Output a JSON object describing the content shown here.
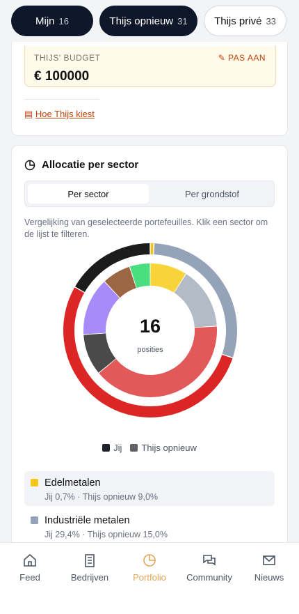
{
  "tabs": [
    {
      "label": "Mijn",
      "count": 16
    },
    {
      "label": "Thijs opnieuw",
      "count": 31
    },
    {
      "label": "Thijs privé",
      "count": 33
    }
  ],
  "budget": {
    "label": "THIJS' BUDGET",
    "edit": "PAS AAN",
    "amount": "€ 100000"
  },
  "how_link": "Hoe Thijs kiest",
  "allocation": {
    "title": "Allocatie per sector",
    "toggle": [
      "Per sector",
      "Per grondstof"
    ],
    "description": "Vergelijking van geselecteerde portefeuilles. Klik een sector om de lijst te filteren.",
    "chart_data": {
      "type": "donut",
      "center_value": 16,
      "center_label": "posities",
      "series": [
        {
          "name": "Jij",
          "color": "#1f2329",
          "values": [
            0.7,
            29.4,
            53.2,
            16.7
          ],
          "colors": [
            "#f5c518",
            "#94a3b8",
            "#dc2626",
            "#1c1c1c"
          ]
        },
        {
          "name": "Thijs opnieuw",
          "color": "#5f6166",
          "values": [
            9.0,
            15.0,
            40,
            10,
            14,
            7,
            5
          ],
          "colors": [
            "#f8d43a",
            "#b3bbc6",
            "#e35858",
            "#4a4a4a",
            "#a78bfa",
            "#9c6644",
            "#4ade80"
          ]
        }
      ]
    }
  },
  "sectors": [
    {
      "name": "Edelmetalen",
      "color": "#f5c518",
      "detail": "Jij 0,7% · Thijs opnieuw 9,0%"
    },
    {
      "name": "Industriële metalen",
      "color": "#94a3b8",
      "detail": "Jij 29,4% · Thijs opnieuw 15,0%"
    }
  ],
  "nav": [
    "Feed",
    "Bedrijven",
    "Portfolio",
    "Community",
    "Nieuws"
  ]
}
